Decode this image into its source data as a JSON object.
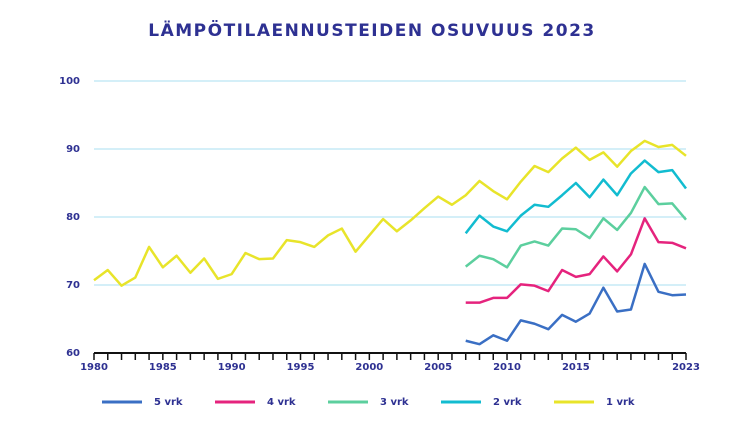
{
  "chart_data": {
    "type": "line",
    "title": "LÄMPÖTILAENNUSTEIDEN OSUVUUS 2023",
    "x": [
      1980,
      1981,
      1982,
      1983,
      1984,
      1985,
      1986,
      1987,
      1988,
      1989,
      1990,
      1991,
      1992,
      1993,
      1994,
      1995,
      1996,
      1997,
      1998,
      1999,
      2000,
      2001,
      2002,
      2003,
      2004,
      2005,
      2006,
      2007,
      2008,
      2009,
      2010,
      2011,
      2012,
      2013,
      2014,
      2015,
      2016,
      2017,
      2018,
      2019,
      2020,
      2021,
      2022,
      2023
    ],
    "xlim": [
      1980,
      2023
    ],
    "xticks": [
      1980,
      1985,
      1990,
      1995,
      2000,
      2005,
      2010,
      2015,
      2023
    ],
    "ylim": [
      60,
      100
    ],
    "yticks": [
      60,
      70,
      80,
      90,
      100
    ],
    "grid": true,
    "series": [
      {
        "name": "5 vrk",
        "color": "#3a6fc4",
        "values": [
          null,
          null,
          null,
          null,
          null,
          null,
          null,
          null,
          null,
          null,
          null,
          null,
          null,
          null,
          null,
          null,
          null,
          null,
          null,
          null,
          null,
          null,
          null,
          null,
          null,
          null,
          null,
          61.8,
          61.3,
          62.6,
          61.8,
          64.8,
          64.3,
          63.5,
          65.6,
          64.6,
          65.8,
          69.6,
          66.1,
          66.4,
          73.1,
          69.0,
          68.5,
          68.6
        ]
      },
      {
        "name": "4 vrk",
        "color": "#e5237d",
        "values": [
          null,
          null,
          null,
          null,
          null,
          null,
          null,
          null,
          null,
          null,
          null,
          null,
          null,
          null,
          null,
          null,
          null,
          null,
          null,
          null,
          null,
          null,
          null,
          null,
          null,
          null,
          null,
          67.4,
          67.4,
          68.1,
          68.1,
          70.1,
          69.9,
          69.1,
          72.2,
          71.2,
          71.6,
          74.2,
          72.0,
          74.5,
          79.8,
          76.3,
          76.2,
          75.4
        ]
      },
      {
        "name": "3 vrk",
        "color": "#5ccf9e",
        "values": [
          null,
          null,
          null,
          null,
          null,
          null,
          null,
          null,
          null,
          null,
          null,
          null,
          null,
          null,
          null,
          null,
          null,
          null,
          null,
          null,
          null,
          null,
          null,
          null,
          null,
          null,
          null,
          72.7,
          74.3,
          73.8,
          72.6,
          75.8,
          76.4,
          75.8,
          78.3,
          78.2,
          76.9,
          79.8,
          78.1,
          80.6,
          84.4,
          81.9,
          82.0,
          79.6
        ]
      },
      {
        "name": "2 vrk",
        "color": "#12bcd0",
        "values": [
          null,
          null,
          null,
          null,
          null,
          null,
          null,
          null,
          null,
          null,
          null,
          null,
          null,
          null,
          null,
          null,
          null,
          null,
          null,
          null,
          null,
          null,
          null,
          null,
          null,
          null,
          null,
          77.6,
          80.2,
          78.6,
          77.9,
          80.2,
          81.8,
          81.5,
          83.2,
          85.0,
          82.9,
          85.5,
          83.2,
          86.4,
          88.3,
          86.6,
          86.9,
          84.2
        ]
      },
      {
        "name": "1 vrk",
        "color": "#e8e42a",
        "values": [
          70.7,
          72.2,
          69.9,
          71.1,
          75.6,
          72.6,
          74.3,
          71.8,
          73.9,
          70.9,
          71.6,
          74.7,
          73.8,
          73.9,
          76.6,
          76.3,
          75.6,
          77.3,
          78.3,
          74.9,
          77.3,
          79.7,
          77.9,
          79.5,
          81.3,
          83.0,
          81.8,
          83.2,
          85.3,
          83.8,
          82.6,
          85.2,
          87.5,
          86.6,
          88.6,
          90.2,
          88.4,
          89.5,
          87.4,
          89.7,
          91.2,
          90.3,
          90.6,
          89.0
        ]
      }
    ]
  }
}
